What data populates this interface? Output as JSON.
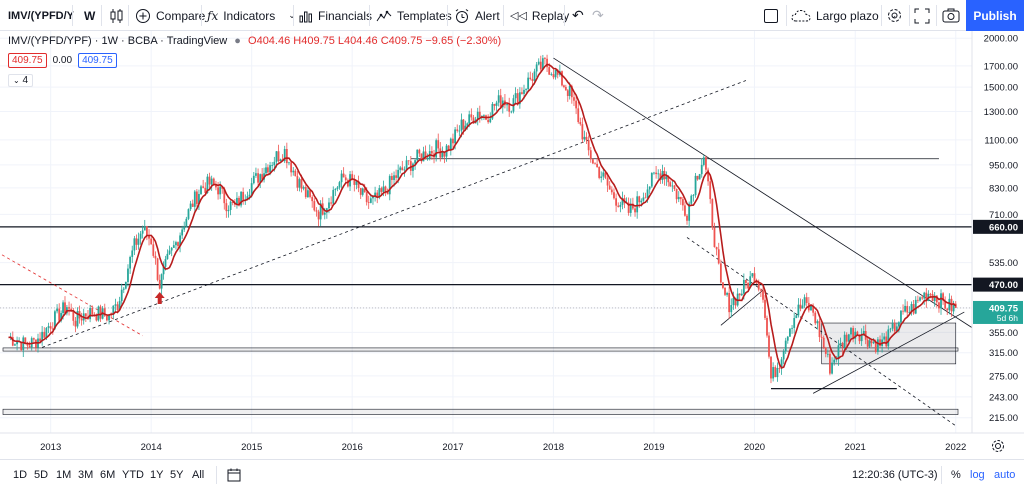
{
  "toolbar": {
    "symbol": "IMV/(YPFD/Y",
    "interval": "W",
    "compare": "Compare",
    "indicators": "Indicators",
    "financials": "Financials",
    "templates": "Templates",
    "alert": "Alert",
    "replay": "Replay",
    "layout": "Largo plazo",
    "publish": "Publish"
  },
  "legend": {
    "title": "IMV/(YPFD/YPF) · 1W · BCBA · TradingView",
    "ohlc": "O404.46 H409.75 L404.46 C409.75 −9.65 (−2.30%)",
    "bid": "409.75",
    "spread": "0.00",
    "ask": "409.75",
    "indicator_count": "4"
  },
  "price_axis": {
    "ticks": [
      "2000.00",
      "1700.00",
      "1500.00",
      "1300.00",
      "1100.00",
      "950.00",
      "830.00",
      "710.00",
      "660.00",
      "535.00",
      "470.00",
      "409.75",
      "355.00",
      "315.00",
      "275.00",
      "243.00",
      "215.00"
    ],
    "last_price": "409.75",
    "countdown": "5d 6h",
    "level_660": "660.00",
    "level_470": "470.00"
  },
  "time_axis": [
    "2013",
    "2014",
    "2015",
    "2016",
    "2017",
    "2018",
    "2019",
    "2020",
    "2021",
    "2022"
  ],
  "bottom": {
    "ranges": [
      "1D",
      "5D",
      "1M",
      "3M",
      "6M",
      "YTD",
      "1Y",
      "5Y",
      "All"
    ],
    "clock": "12:20:36 (UTC-3)",
    "percent": "%",
    "log": "log",
    "auto": "auto"
  },
  "colors": {
    "up": "#26a69a",
    "down": "#ef5350",
    "ma": "#b71c1c",
    "accent": "#2962ff",
    "arrow": "#c62828"
  },
  "chart_data": {
    "type": "candlestick",
    "scale": "log",
    "x_range": [
      "2012-07",
      "2022-03"
    ],
    "y_range": [
      200,
      2050
    ],
    "closes": [
      [
        "2012-08",
        345
      ],
      [
        "2012-09",
        338
      ],
      [
        "2012-10",
        330
      ],
      [
        "2012-11",
        335
      ],
      [
        "2012-12",
        350
      ],
      [
        "2013-01",
        375
      ],
      [
        "2013-02",
        395
      ],
      [
        "2013-03",
        415
      ],
      [
        "2013-04",
        380
      ],
      [
        "2013-05",
        395
      ],
      [
        "2013-06",
        400
      ],
      [
        "2013-07",
        395
      ],
      [
        "2013-08",
        390
      ],
      [
        "2013-09",
        420
      ],
      [
        "2013-10",
        500
      ],
      [
        "2013-11",
        590
      ],
      [
        "2013-12",
        650
      ],
      [
        "2014-01",
        610
      ],
      [
        "2014-02",
        470
      ],
      [
        "2014-03",
        540
      ],
      [
        "2014-04",
        600
      ],
      [
        "2014-05",
        680
      ],
      [
        "2014-06",
        760
      ],
      [
        "2014-07",
        830
      ],
      [
        "2014-08",
        850
      ],
      [
        "2014-09",
        830
      ],
      [
        "2014-10",
        760
      ],
      [
        "2014-11",
        740
      ],
      [
        "2014-12",
        800
      ],
      [
        "2015-01",
        850
      ],
      [
        "2015-02",
        900
      ],
      [
        "2015-03",
        950
      ],
      [
        "2015-04",
        1000
      ],
      [
        "2015-05",
        1030
      ],
      [
        "2015-06",
        920
      ],
      [
        "2015-07",
        830
      ],
      [
        "2015-08",
        770
      ],
      [
        "2015-09",
        720
      ],
      [
        "2015-10",
        760
      ],
      [
        "2015-11",
        830
      ],
      [
        "2015-12",
        880
      ],
      [
        "2016-01",
        860
      ],
      [
        "2016-02",
        800
      ],
      [
        "2016-03",
        760
      ],
      [
        "2016-04",
        780
      ],
      [
        "2016-05",
        820
      ],
      [
        "2016-06",
        880
      ],
      [
        "2016-07",
        920
      ],
      [
        "2016-08",
        960
      ],
      [
        "2016-09",
        1000
      ],
      [
        "2016-10",
        1020
      ],
      [
        "2016-11",
        1050
      ],
      [
        "2016-12",
        1030
      ],
      [
        "2017-01",
        1100
      ],
      [
        "2017-02",
        1200
      ],
      [
        "2017-03",
        1230
      ],
      [
        "2017-04",
        1300
      ],
      [
        "2017-05",
        1260
      ],
      [
        "2017-06",
        1350
      ],
      [
        "2017-07",
        1400
      ],
      [
        "2017-08",
        1350
      ],
      [
        "2017-09",
        1450
      ],
      [
        "2017-10",
        1550
      ],
      [
        "2017-11",
        1650
      ],
      [
        "2017-12",
        1720
      ],
      [
        "2018-01",
        1650
      ],
      [
        "2018-02",
        1550
      ],
      [
        "2018-03",
        1450
      ],
      [
        "2018-04",
        1250
      ],
      [
        "2018-05",
        1050
      ],
      [
        "2018-06",
        950
      ],
      [
        "2018-07",
        880
      ],
      [
        "2018-08",
        800
      ],
      [
        "2018-09",
        760
      ],
      [
        "2018-10",
        720
      ],
      [
        "2018-11",
        760
      ],
      [
        "2018-12",
        820
      ],
      [
        "2019-01",
        880
      ],
      [
        "2019-02",
        920
      ],
      [
        "2019-03",
        860
      ],
      [
        "2019-04",
        780
      ],
      [
        "2019-05",
        720
      ],
      [
        "2019-06",
        880
      ],
      [
        "2019-07",
        1000
      ],
      [
        "2019-08",
        680
      ],
      [
        "2019-09",
        460
      ],
      [
        "2019-10",
        420
      ],
      [
        "2019-11",
        440
      ],
      [
        "2019-12",
        470
      ],
      [
        "2020-01",
        500
      ],
      [
        "2020-02",
        450
      ],
      [
        "2020-03",
        270
      ],
      [
        "2020-04",
        300
      ],
      [
        "2020-05",
        360
      ],
      [
        "2020-06",
        400
      ],
      [
        "2020-07",
        420
      ],
      [
        "2020-08",
        400
      ],
      [
        "2020-09",
        340
      ],
      [
        "2020-10",
        290
      ],
      [
        "2020-11",
        320
      ],
      [
        "2020-12",
        350
      ],
      [
        "2021-01",
        360
      ],
      [
        "2021-02",
        350
      ],
      [
        "2021-03",
        335
      ],
      [
        "2021-04",
        330
      ],
      [
        "2021-05",
        345
      ],
      [
        "2021-06",
        375
      ],
      [
        "2021-07",
        400
      ],
      [
        "2021-08",
        410
      ],
      [
        "2021-09",
        440
      ],
      [
        "2021-10",
        450
      ],
      [
        "2021-11",
        430
      ],
      [
        "2021-12",
        415
      ],
      [
        "2022-01",
        409.75
      ]
    ]
  }
}
